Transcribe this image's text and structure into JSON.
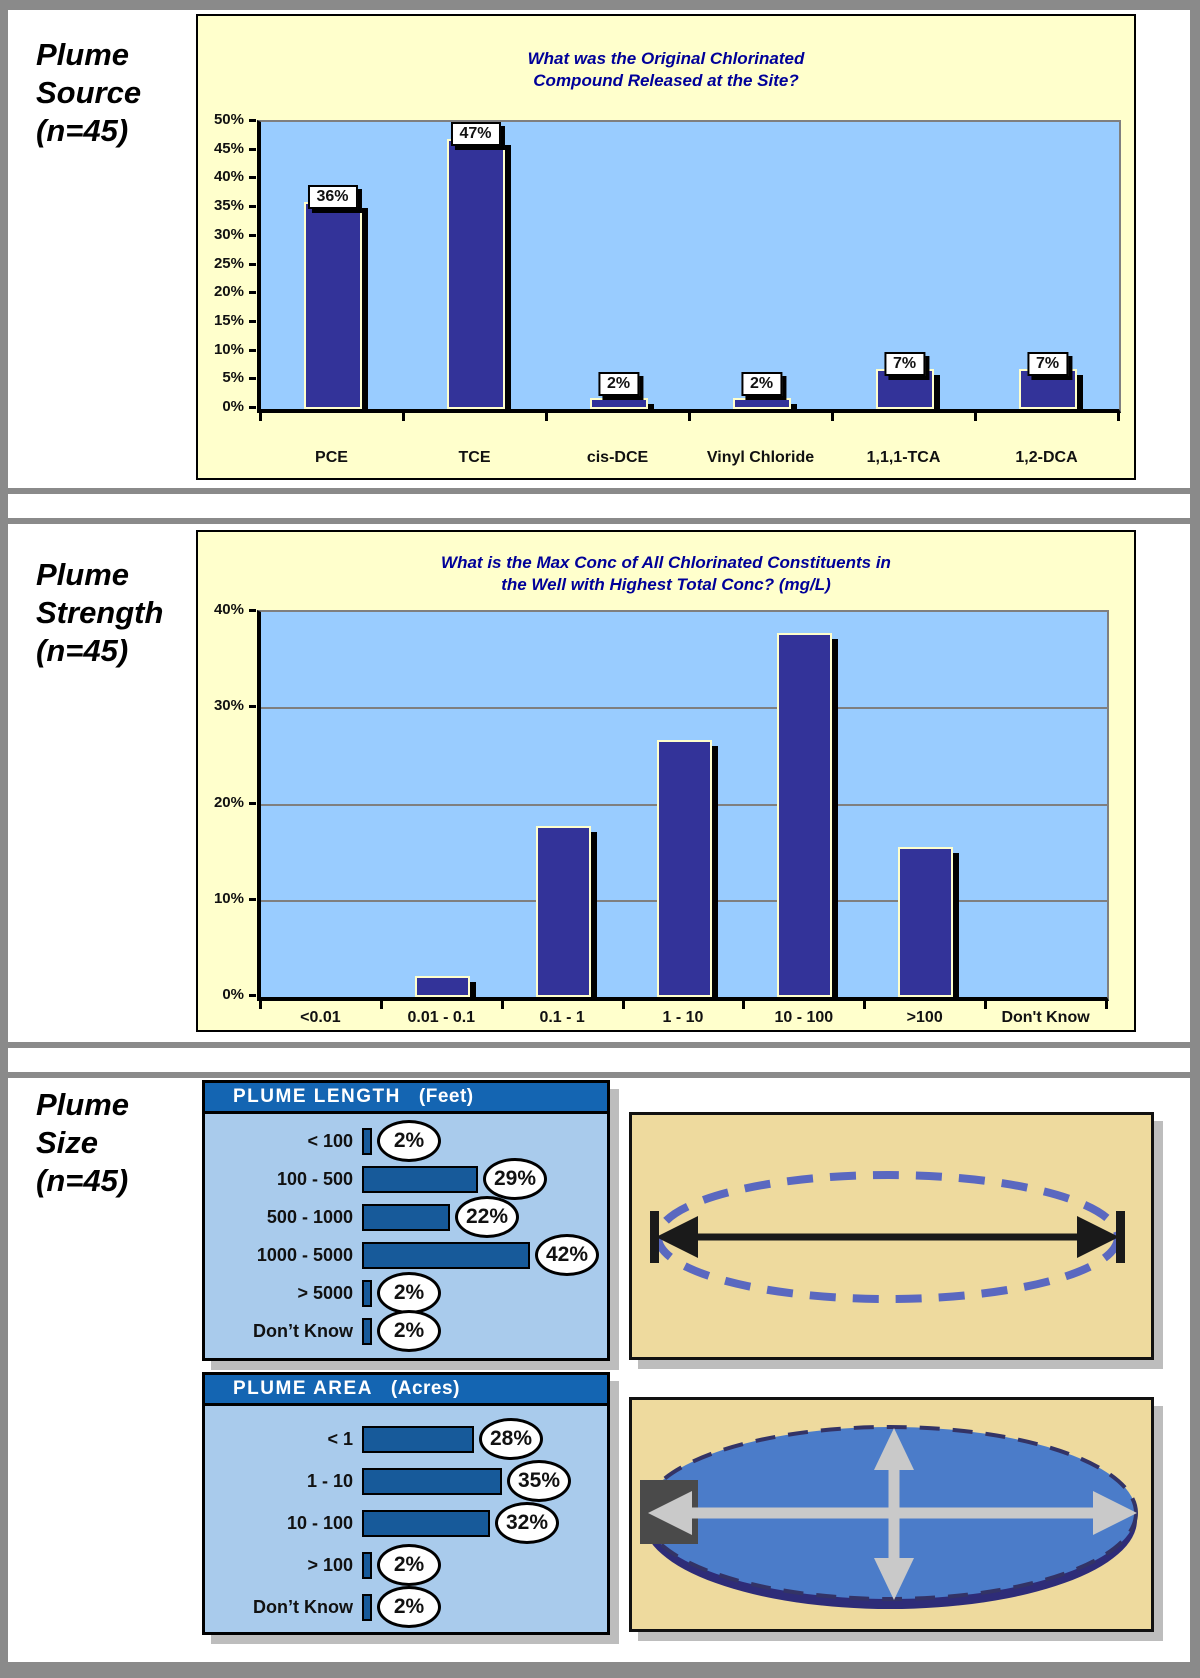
{
  "panels": [
    {
      "label_lines": [
        "Plume",
        "Source",
        "(n=45)"
      ]
    },
    {
      "label_lines": [
        "Plume",
        "Strength",
        "(n=45)"
      ]
    },
    {
      "label_lines": [
        "Plume",
        "Size",
        "(n=45)"
      ]
    }
  ],
  "chart_data": [
    {
      "id": "plume-source",
      "type": "bar",
      "title_lines": [
        "What was the Original Chlorinated",
        "Compound Released at the Site?"
      ],
      "categories": [
        "PCE",
        "TCE",
        "cis-DCE",
        "Vinyl Chloride",
        "1,1,1-TCA",
        "1,2-DCA"
      ],
      "values": [
        36,
        47,
        2,
        2,
        7,
        7
      ],
      "bar_labels": [
        "36%",
        "47%",
        "2%",
        "2%",
        "7%",
        "7%"
      ],
      "ylim": [
        0,
        50
      ],
      "yticks": [
        "0%",
        "5%",
        "10%",
        "15%",
        "20%",
        "25%",
        "30%",
        "35%",
        "40%",
        "45%",
        "50%"
      ],
      "gridlines": false,
      "legend": "none"
    },
    {
      "id": "plume-strength",
      "type": "bar",
      "title_lines": [
        "What is the Max Conc of All Chlorinated Constituents in",
        "the Well with Highest Total Conc? (mg/L)"
      ],
      "categories": [
        "<0.01",
        "0.01 - 0.1",
        "0.1 - 1",
        "1 - 10",
        "10 - 100",
        ">100",
        "Don't Know"
      ],
      "values": [
        0,
        2.2,
        17.8,
        26.7,
        37.8,
        15.6,
        0
      ],
      "ylim": [
        0,
        40
      ],
      "yticks": [
        "0%",
        "10%",
        "20%",
        "30%",
        "40%"
      ],
      "gridlines": true,
      "legend": "none"
    },
    {
      "id": "plume-length",
      "type": "bar-horizontal",
      "header": "PLUME LENGTH",
      "unit": "(Feet)",
      "categories": [
        "< 100",
        "100 - 500",
        "500 - 1000",
        "1000 - 5000",
        "> 5000",
        "Don’t Know"
      ],
      "values": [
        2,
        29,
        22,
        42,
        2,
        2
      ],
      "bar_labels": [
        "2%",
        "29%",
        "22%",
        "42%",
        "2%",
        "2%"
      ]
    },
    {
      "id": "plume-area",
      "type": "bar-horizontal",
      "header": "PLUME AREA",
      "unit": "(Acres)",
      "categories": [
        "< 1",
        "1 - 10",
        "10 - 100",
        "> 100",
        "Don’t Know"
      ],
      "values": [
        28,
        35,
        32,
        2,
        2
      ],
      "bar_labels": [
        "28%",
        "35%",
        "32%",
        "2%",
        "2%"
      ]
    }
  ],
  "colors": {
    "chart_background": "#FFFFCC",
    "plot_background": "#99CCFF",
    "bar_fill": "#333399",
    "title_navy": "#000099",
    "table_background": "#A9CBEC",
    "table_header": "#1465B2",
    "table_bar": "#175A9A",
    "illustration_background": "#EEDA9E",
    "plume_ellipse_dash": "#5A68C0",
    "plume_area_fill": "#4B7CC9",
    "plume_area_rim": "#2E2C78",
    "arrow_silver": "#C9C9C9",
    "frame_gray": "#8A8A8A"
  }
}
